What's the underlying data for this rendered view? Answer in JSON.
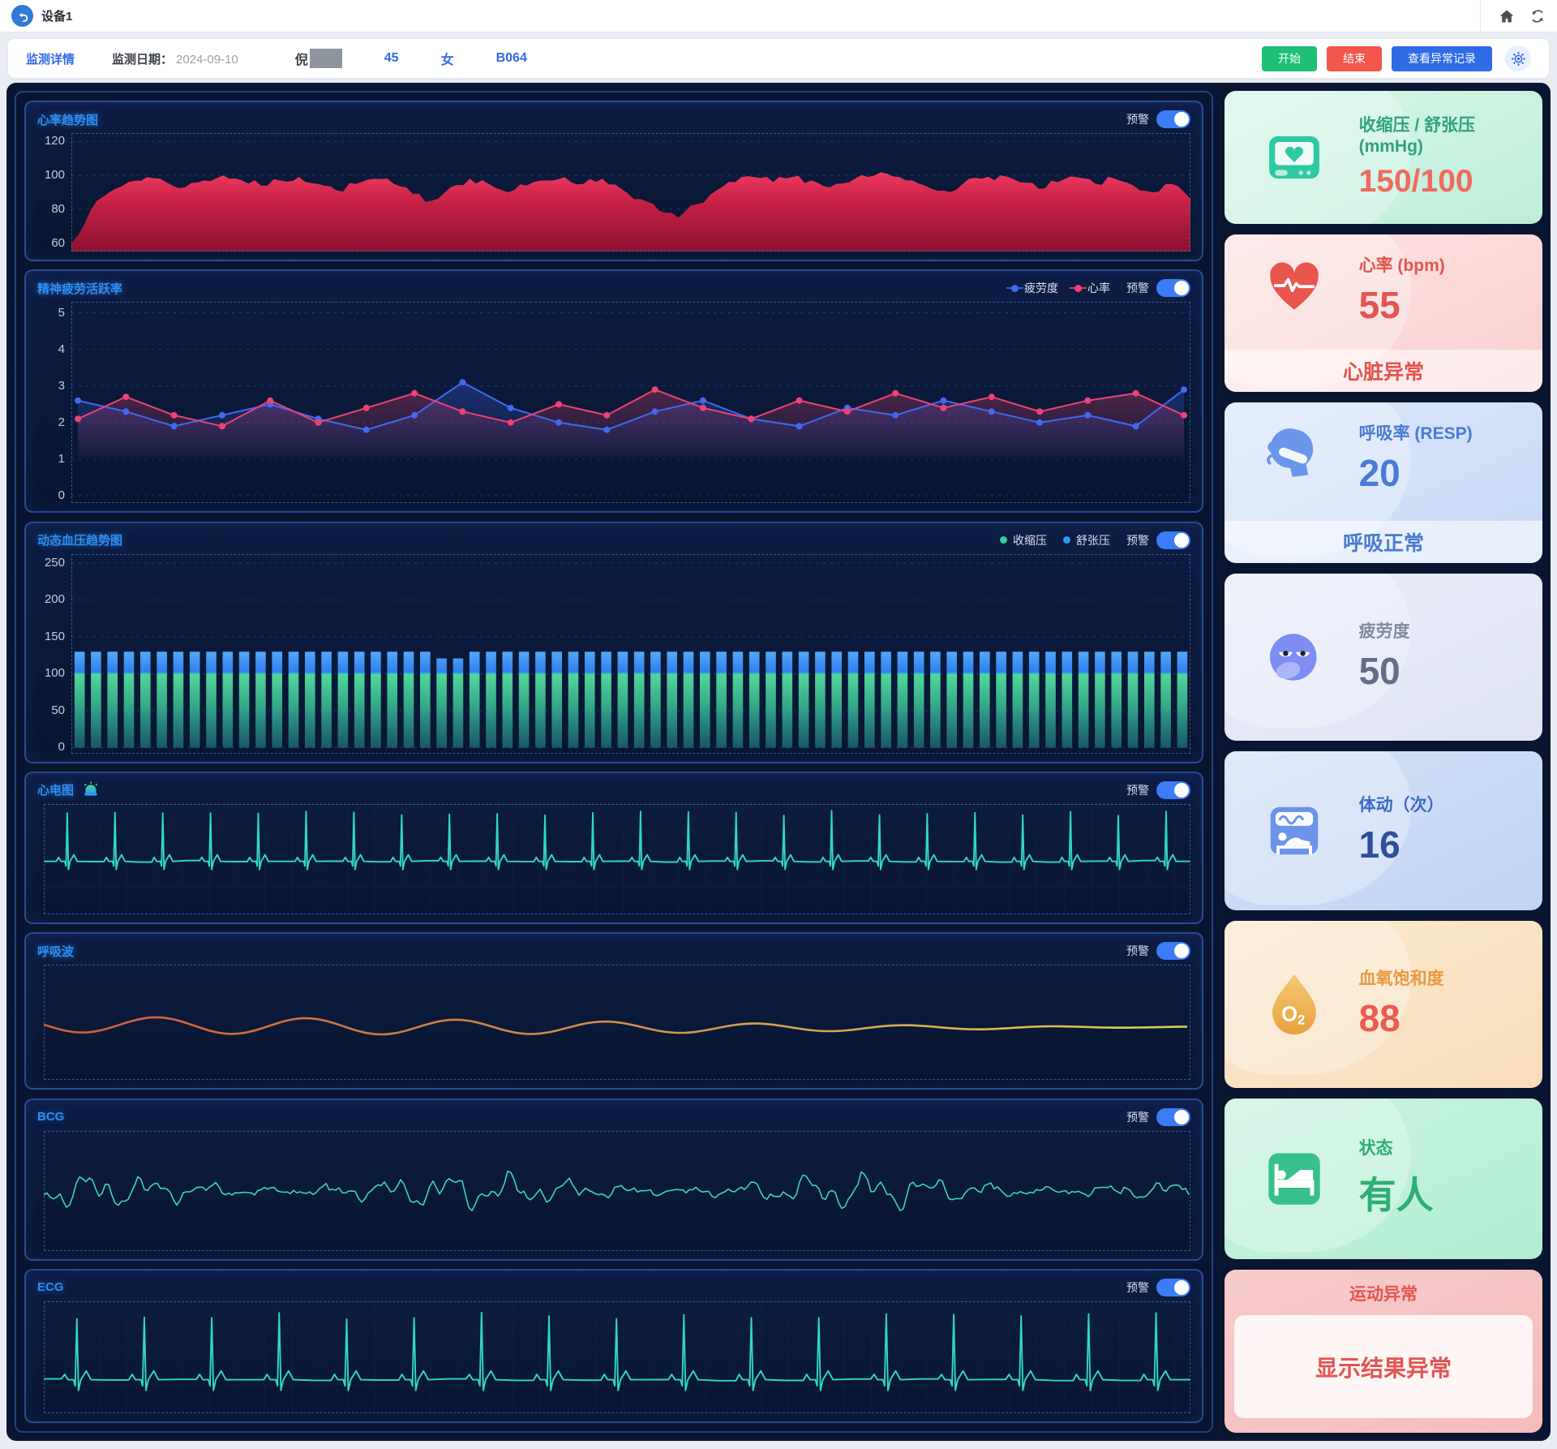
{
  "app": {
    "title": "设备1"
  },
  "header": {
    "tab": "监测详情",
    "date_label": "监测日期：",
    "date": "2024-09-10",
    "patient_name": "倪",
    "age": "45",
    "gender": "女",
    "bed_code": "B064",
    "start_label": "开始",
    "stop_label": "结束",
    "records_label": "查看异常记录"
  },
  "alarm_label": "预警",
  "panels": [
    {
      "title": "心率趋势图"
    },
    {
      "title": "精神疲劳活跃率"
    },
    {
      "title": "动态血压趋势图"
    },
    {
      "title": "心电图"
    },
    {
      "title": "呼吸波"
    },
    {
      "title": "BCG"
    },
    {
      "title": "ECG"
    }
  ],
  "chart_data": {
    "heart_rate_trend": {
      "type": "area",
      "ylim": [
        55,
        125
      ],
      "y_ticks": [
        120,
        100,
        80,
        60
      ],
      "values": [
        60,
        79,
        90,
        96,
        99,
        96,
        93,
        97,
        100,
        97,
        94,
        97,
        99,
        95,
        91,
        95,
        98,
        95,
        89,
        85,
        93,
        98,
        95,
        90,
        94,
        97,
        99,
        95,
        98,
        92,
        86,
        79,
        75,
        83,
        91,
        96,
        99,
        96,
        99,
        97,
        93,
        96,
        99,
        101,
        97,
        94,
        91,
        95,
        98,
        100,
        96,
        92,
        96,
        99,
        95,
        98,
        94,
        90,
        95,
        86
      ],
      "color_top": "#ef3a60",
      "color_mid": "#c41f44",
      "color_bottom": "#8c1232"
    },
    "mental_fatigue": {
      "type": "line",
      "ylim": [
        -0.2,
        5.3
      ],
      "y_ticks": [
        5,
        4,
        3,
        2,
        1,
        0
      ],
      "series": [
        {
          "name": "疲劳度",
          "color": "#4169f0",
          "values": [
            2.6,
            2.3,
            1.9,
            2.2,
            2.5,
            2.1,
            1.8,
            2.2,
            3.1,
            2.4,
            2.0,
            1.8,
            2.3,
            2.6,
            2.1,
            1.9,
            2.4,
            2.2,
            2.6,
            2.3,
            2.0,
            2.2,
            1.9,
            2.9
          ]
        },
        {
          "name": "心率",
          "color": "#ee4272",
          "values": [
            2.1,
            2.7,
            2.2,
            1.9,
            2.6,
            2.0,
            2.4,
            2.8,
            2.3,
            2.0,
            2.5,
            2.2,
            2.9,
            2.4,
            2.1,
            2.6,
            2.3,
            2.8,
            2.4,
            2.7,
            2.3,
            2.6,
            2.8,
            2.2
          ]
        }
      ]
    },
    "blood_pressure": {
      "type": "bar",
      "ylim": [
        -8,
        262
      ],
      "y_ticks": [
        250,
        200,
        150,
        100,
        50,
        0
      ],
      "bars": 68,
      "systolic": 130,
      "diastolic": 100,
      "dip_indices": [
        22,
        23
      ],
      "dip_value": 121,
      "legend": [
        {
          "label": "收缩压",
          "color": "#38cf92"
        },
        {
          "label": "舒张压",
          "color": "#2f9bf0"
        }
      ]
    },
    "ecg_top": {
      "type": "ecg",
      "beats": 24,
      "color": "#2fd8c8"
    },
    "resp_wave": {
      "type": "wave",
      "color_start": "#cf5d3a",
      "color_mid": "#cf8a46",
      "color_end": "#d9cf5e"
    },
    "bcg": {
      "type": "bcg",
      "color": "#3cd4bc"
    },
    "ecg_bottom": {
      "type": "ecg",
      "beats": 17,
      "color": "#2fd8c8"
    }
  },
  "sidebar": {
    "cards": [
      {
        "title": "收缩压 / 舒张压 (mmHg)",
        "value": "150/100",
        "bg": [
          "#d8f6e9",
          "#bdeeda"
        ],
        "accent": "#2fa37d",
        "value_color": "#f06a5e"
      },
      {
        "title": "心率 (bpm)",
        "value": "55",
        "status": "心脏异常",
        "bg": [
          "#fde3e3",
          "#f9cfcf"
        ],
        "accent": "#e25550",
        "value_color": "#e25550",
        "status_color": "#e25550"
      },
      {
        "title": "呼吸率 (RESP)",
        "value": "20",
        "status": "呼吸正常",
        "bg": [
          "#dbe7fa",
          "#c8daf7"
        ],
        "accent": "#4a7ad2",
        "value_color": "#4a7ad2",
        "status_color": "#4a7ad2"
      },
      {
        "title": "疲劳度",
        "value": "50",
        "bg": [
          "#e9ecf9",
          "#dfe4f6"
        ],
        "accent": "#8289a0",
        "value_color": "#646e8a"
      },
      {
        "title": "体动（次）",
        "value": "16",
        "bg": [
          "#d3e2f8",
          "#c1d4f4"
        ],
        "accent": "#3e68c4",
        "value_color": "#2e4f9e"
      },
      {
        "title": "血氧饱和度",
        "value": "88",
        "bg": [
          "#fbe9cf",
          "#f8ddba"
        ],
        "accent": "#e89a43",
        "value_color": "#ee5a50"
      },
      {
        "title": "状态",
        "value": "有人",
        "bg": [
          "#c9f3e1",
          "#b2edd3"
        ],
        "accent": "#2fae72",
        "value_color": "#2fae72"
      },
      {
        "title": "运动异常",
        "status": "显示结果异常",
        "bg": [
          "#f8cccc",
          "#f5bcbc"
        ],
        "accent": "#e25550",
        "status_color": "#e25550"
      }
    ]
  }
}
